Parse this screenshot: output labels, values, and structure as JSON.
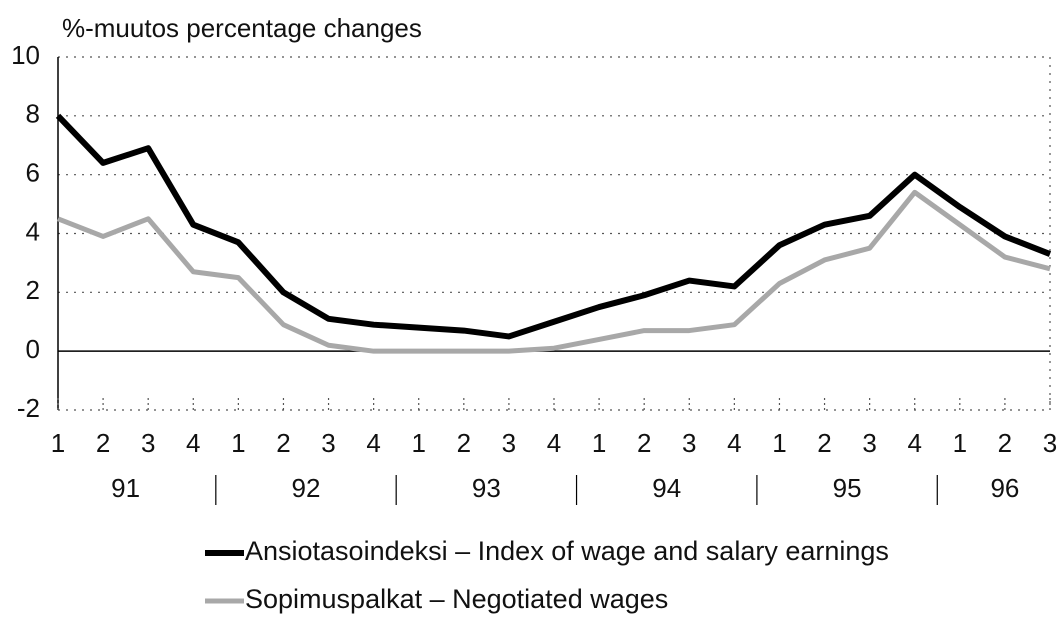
{
  "chart_data": {
    "type": "line",
    "title": "%-muutos  percentage changes",
    "categories": [
      "1",
      "2",
      "3",
      "4",
      "1",
      "2",
      "3",
      "4",
      "1",
      "2",
      "3",
      "4",
      "1",
      "2",
      "3",
      "4",
      "1",
      "2",
      "3",
      "4",
      "1",
      "2",
      "3"
    ],
    "year_labels": [
      "91",
      "92",
      "93",
      "94",
      "95",
      "96"
    ],
    "series": [
      {
        "name": "Ansiotasoindeksi  – Index of wage and salary earnings",
        "color": "#000000",
        "values": [
          8.0,
          6.4,
          6.9,
          4.3,
          3.7,
          2.0,
          1.1,
          0.9,
          0.8,
          0.7,
          0.5,
          1.0,
          1.5,
          1.9,
          2.4,
          2.2,
          3.6,
          4.3,
          4.6,
          6.0,
          4.9,
          3.9,
          3.3
        ]
      },
      {
        "name": "Sopimuspalkat  – Negotiated wages",
        "color": "#a8a8a8",
        "values": [
          4.5,
          3.9,
          4.5,
          2.7,
          2.5,
          0.9,
          0.2,
          0.0,
          0.0,
          0.0,
          0.0,
          0.1,
          0.4,
          0.7,
          0.7,
          0.9,
          2.3,
          3.1,
          3.5,
          5.4,
          4.3,
          3.2,
          2.8
        ]
      }
    ],
    "ylim": [
      -2,
      10
    ],
    "yticks": [
      -2,
      0,
      2,
      4,
      6,
      8,
      10
    ],
    "grid": true
  }
}
